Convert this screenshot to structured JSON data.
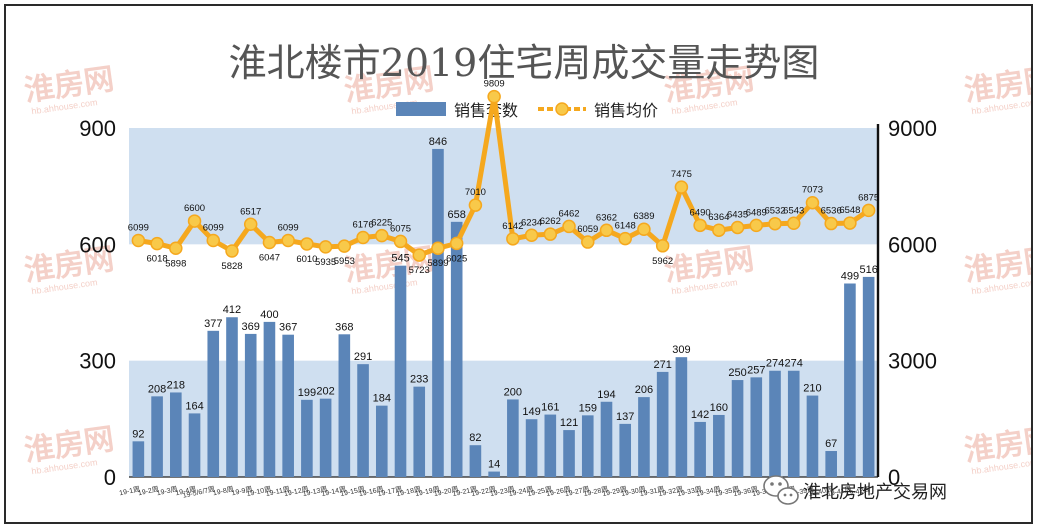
{
  "chart_data": {
    "type": "bar+line",
    "title": "淮北楼市2019住宅周成交量走势图",
    "legend": {
      "bars": "销售套数",
      "line": "销售均价",
      "placement": "top-center"
    },
    "left_axis": {
      "ticks": [
        "0",
        "300",
        "600",
        "900"
      ],
      "ylim": [
        0,
        900
      ]
    },
    "right_axis": {
      "ticks": [
        "0",
        "3000",
        "6000",
        "9000"
      ],
      "ylim": [
        0,
        9000
      ]
    },
    "categories": [
      "19-1周",
      "19-2周",
      "19-3周",
      "19-4周",
      "19-5/6/7周",
      "19-8周",
      "19-9周",
      "19-10周",
      "19-11周",
      "19-12周",
      "19-13周",
      "19-14周",
      "19-15周",
      "19-16周",
      "19-17周",
      "19-18周",
      "19-19周",
      "19-20周",
      "19-21周",
      "19-22周",
      "19-23周",
      "19-24周",
      "19-25周",
      "19-26周",
      "19-27周",
      "19-28周",
      "19-29周",
      "19-30周",
      "19-31周",
      "19-32周",
      "19-33周",
      "19-34周",
      "19-35周",
      "19-36周",
      "19-37周",
      "19-38周",
      "19-39周",
      "19-40周",
      "19-41周",
      "19-42周"
    ],
    "series": [
      {
        "name": "销售套数",
        "axis": "left",
        "values": [
          92,
          208,
          218,
          164,
          377,
          412,
          369,
          400,
          367,
          199,
          202,
          368,
          291,
          184,
          545,
          233,
          846,
          658,
          82,
          14,
          200,
          149,
          161,
          121,
          159,
          194,
          137,
          206,
          271,
          309,
          142,
          160,
          250,
          257,
          274,
          274,
          210,
          67,
          499,
          516
        ]
      },
      {
        "name": "销售均价",
        "axis": "right",
        "values": [
          6099,
          6018,
          5898,
          6600,
          6099,
          5828,
          6517,
          6047,
          6099,
          6010,
          5935,
          5953,
          6176,
          6225,
          6075,
          5723,
          5899,
          6025,
          7010,
          9809,
          6142,
          6234,
          6262,
          6462,
          6059,
          6362,
          6148,
          6389,
          5962,
          7475,
          6490,
          6364,
          6435,
          6489,
          6532,
          6543,
          7073,
          6536,
          6548,
          6875
        ]
      }
    ],
    "grid": true,
    "colors": {
      "bars": "#5b85b8",
      "line": "#f5a81e",
      "marker_fill": "#f8c94a",
      "band": "#cfdff0",
      "title": "#555555"
    }
  },
  "footer": {
    "source_label": "淮北房地产交易网",
    "icon": "wechat-icon"
  },
  "watermark": {
    "text": "淮房网",
    "sub": "hb.ahhouse.com"
  }
}
